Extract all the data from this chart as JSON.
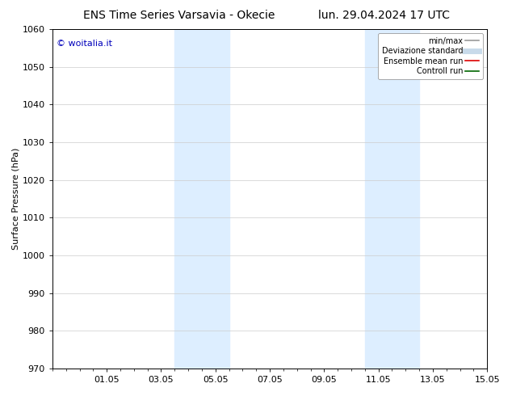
{
  "title_left": "ENS Time Series Varsavia - Okecie",
  "title_right": "lun. 29.04.2024 17 UTC",
  "ylabel": "Surface Pressure (hPa)",
  "ylim": [
    970,
    1060
  ],
  "yticks": [
    970,
    980,
    990,
    1000,
    1010,
    1020,
    1030,
    1040,
    1050,
    1060
  ],
  "xtick_labels": [
    "01.05",
    "03.05",
    "05.05",
    "07.05",
    "09.05",
    "11.05",
    "13.05",
    "15.05"
  ],
  "xtick_positions": [
    2,
    4,
    6,
    8,
    10,
    12,
    14,
    16
  ],
  "xlim": [
    0,
    16
  ],
  "background_color": "#ffffff",
  "plot_bg_color": "#ffffff",
  "shaded_bands": [
    {
      "xmin": 4.5,
      "xmax": 6.5,
      "color": "#ddeeff",
      "alpha": 1.0
    },
    {
      "xmin": 11.5,
      "xmax": 13.5,
      "color": "#ddeeff",
      "alpha": 1.0
    }
  ],
  "watermark_text": "© woitalia.it",
  "watermark_color": "#0000bb",
  "legend_items": [
    {
      "label": "min/max",
      "color": "#999999",
      "linewidth": 1.2,
      "linestyle": "-"
    },
    {
      "label": "Deviazione standard",
      "color": "#c8daea",
      "linewidth": 5,
      "linestyle": "-"
    },
    {
      "label": "Ensemble mean run",
      "color": "#dd0000",
      "linewidth": 1.2,
      "linestyle": "-"
    },
    {
      "label": "Controll run",
      "color": "#006600",
      "linewidth": 1.2,
      "linestyle": "-"
    }
  ],
  "title_fontsize": 10,
  "axis_label_fontsize": 8,
  "tick_fontsize": 8,
  "legend_fontsize": 7,
  "watermark_fontsize": 8,
  "grid_color": "#cccccc",
  "grid_linestyle": "-",
  "grid_linewidth": 0.5,
  "fig_width": 6.34,
  "fig_height": 4.9,
  "dpi": 100
}
